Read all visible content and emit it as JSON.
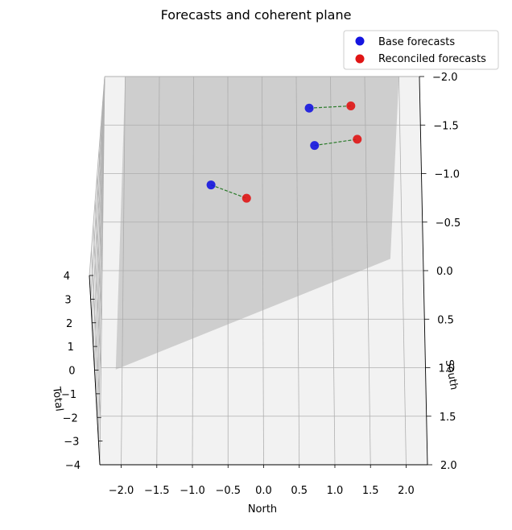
{
  "chart_data": {
    "type": "scatter",
    "projection": "3d",
    "title": "Forecasts and coherent plane",
    "xlabel": "North",
    "ylabel": "South",
    "zlabel": "Total",
    "xlim": [
      -2.3,
      2.3
    ],
    "ylim": [
      2.0,
      -2.0
    ],
    "zlim": [
      -4,
      4
    ],
    "x_ticks": [
      "−2.0",
      "−1.5",
      "−1.0",
      "−0.5",
      "0.0",
      "0.5",
      "1.0",
      "1.5",
      "2.0"
    ],
    "y_ticks": [
      "−2.0",
      "−1.5",
      "−1.0",
      "−0.5",
      "0.0",
      "0.5",
      "1.0",
      "1.5",
      "2.0"
    ],
    "z_ticks": [
      "−4",
      "−3",
      "−2",
      "−1",
      "0",
      "1",
      "2",
      "3",
      "4"
    ],
    "grid": true,
    "legend_position": "top-right",
    "coherent_plane": "Total = North + South",
    "series": [
      {
        "name": "Base forecasts",
        "color": "#1515e0",
        "points": [
          {
            "x": -0.7,
            "y": -0.4,
            "z": 0.8
          },
          {
            "x": 0.8,
            "y": -0.8,
            "z": 2.3
          },
          {
            "x": 0.7,
            "y": -1.5,
            "z": 1.4
          }
        ]
      },
      {
        "name": "Reconciled forecasts",
        "color": "#e01515",
        "points": [
          {
            "x": -0.2,
            "y": -0.4,
            "z": -0.6
          },
          {
            "x": 1.4,
            "y": -1.1,
            "z": 0.3
          },
          {
            "x": 1.3,
            "y": -1.6,
            "z": -0.3
          }
        ]
      }
    ],
    "connector_color": "#2a7a2a"
  }
}
